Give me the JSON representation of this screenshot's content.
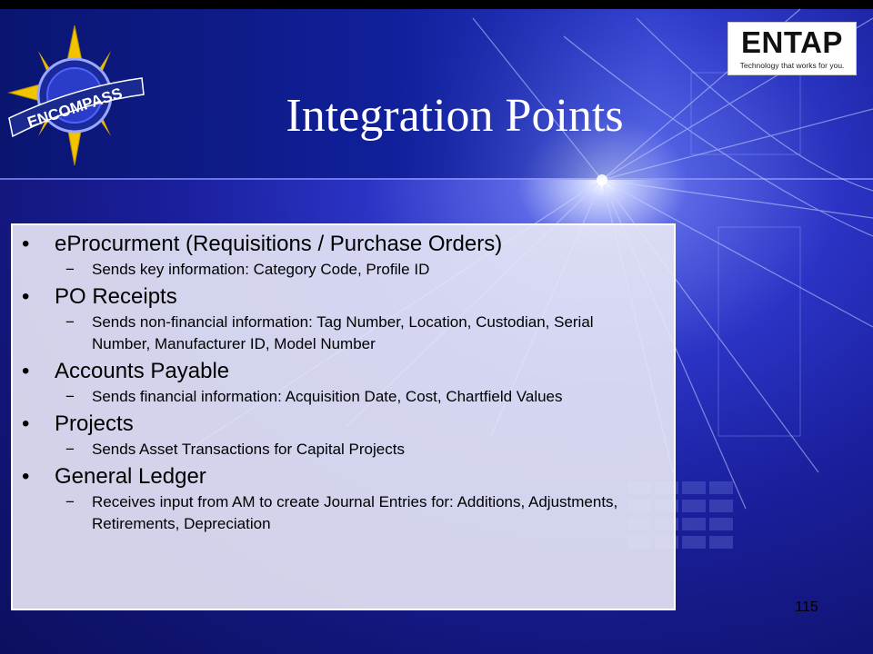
{
  "slide": {
    "title": "Integration Points",
    "page_number": "115"
  },
  "logos": {
    "left_logo_text": "ENCOMPASS",
    "right_logo_name": "ENTAP",
    "right_logo_tagline": "Technology that works for you."
  },
  "bullets": [
    {
      "label": "eProcurment (Requisitions / Purchase Orders)",
      "sub": [
        "Sends key information:  Category Code, Profile ID"
      ]
    },
    {
      "label": "PO Receipts",
      "sub": [
        "Sends non-financial information:  Tag Number, Location, Custodian, Serial Number, Manufacturer ID, Model Number"
      ]
    },
    {
      "label": "Accounts Payable",
      "sub": [
        "Sends financial information:  Acquisition Date, Cost, Chartfield Values"
      ]
    },
    {
      "label": "Projects",
      "sub": [
        "Sends Asset Transactions for Capital Projects"
      ]
    },
    {
      "label": "General Ledger",
      "sub": [
        "Receives input from AM to create Journal Entries for: Additions, Adjustments, Retirements, Depreciation"
      ]
    }
  ],
  "markers": {
    "bullet_char": "•",
    "dash_char": "−"
  },
  "colors": {
    "background": "#1a1f9c",
    "content_panel": "#e8e8f6",
    "title_text": "#ffffff",
    "compass_gold": "#f2c400"
  }
}
